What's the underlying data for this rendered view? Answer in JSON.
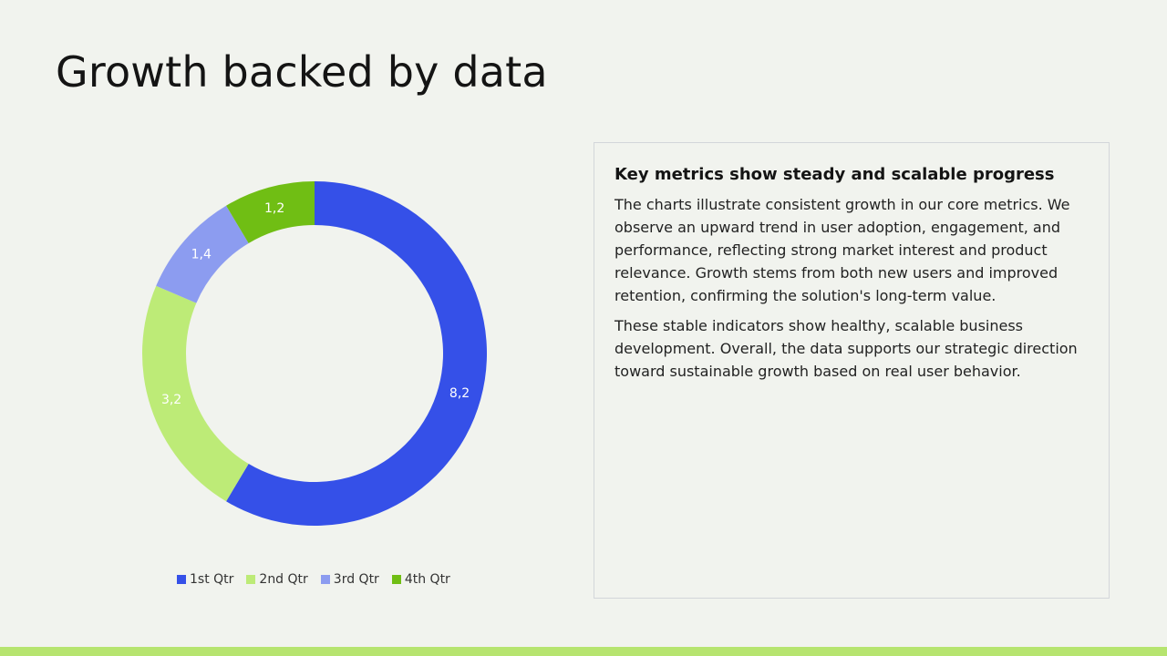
{
  "slide": {
    "title": "Growth backed by data"
  },
  "panel": {
    "heading": "Key metrics show steady and scalable progress",
    "paragraphs": [
      "The charts illustrate consistent growth in our core metrics. We observe an upward trend in user adoption, engagement, and performance, reflecting strong market interest and product relevance. Growth stems from both new users and improved retention, confirming the solution's long-term value.",
      "These stable indicators show healthy, scalable business development. Overall, the data supports our strategic direction toward sustainable growth based on real user behavior."
    ]
  },
  "chart_data": {
    "type": "pie",
    "variant": "doughnut",
    "categories": [
      "1st Qtr",
      "2nd Qtr",
      "3rd Qtr",
      "4th Qtr"
    ],
    "values": [
      8.2,
      3.2,
      1.4,
      1.2
    ],
    "data_labels": [
      "8,2",
      "3,2",
      "1,4",
      "1,2"
    ],
    "colors": [
      "#3550e8",
      "#bdeb77",
      "#8c9cf0",
      "#70be14"
    ],
    "legend": "bottom",
    "start": "top, clockwise"
  },
  "theme": {
    "background": "#f1f3ee",
    "accent_bar": "#b6e46f",
    "panel_border": "#d3d6da"
  }
}
